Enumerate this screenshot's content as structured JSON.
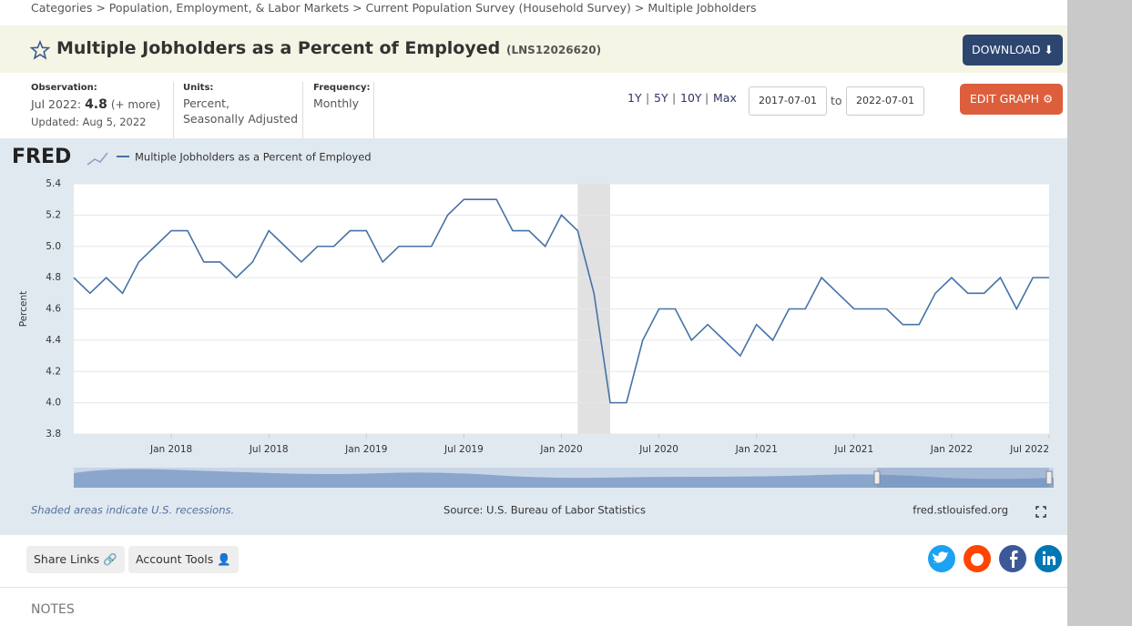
{
  "breadcrumb": "Categories > Population, Employment, & Labor Markets > Current Population Survey (Household Survey) > Multiple Jobholders",
  "header": {
    "title": "Multiple Jobholders as a Percent of Employed",
    "series_id": "(LNS12026620)",
    "download": "DOWNLOAD"
  },
  "meta": {
    "observation_label": "Observation:",
    "observation_date": "Jul 2022:",
    "observation_value": 4.8,
    "more": "(+ more)",
    "updated": "Updated: Aug 5, 2022",
    "units_label": "Units:",
    "units": [
      "Percent,",
      "Seasonally Adjusted"
    ],
    "frequency_label": "Frequency:",
    "frequency": "Monthly"
  },
  "controls": {
    "ranges": [
      "1Y",
      "5Y",
      "10Y",
      "Max"
    ],
    "range_separator": "|",
    "start_date": "2017-07-01",
    "to": "to",
    "end_date": "2022-07-01",
    "edit": "EDIT GRAPH"
  },
  "chart_data": {
    "type": "line",
    "logo": "FRED",
    "ylabel": "Percent",
    "x": [
      "2017-07",
      "2017-08",
      "2017-09",
      "2017-10",
      "2017-11",
      "2017-12",
      "2018-01",
      "2018-02",
      "2018-03",
      "2018-04",
      "2018-05",
      "2018-06",
      "2018-07",
      "2018-08",
      "2018-09",
      "2018-10",
      "2018-11",
      "2018-12",
      "2019-01",
      "2019-02",
      "2019-03",
      "2019-04",
      "2019-05",
      "2019-06",
      "2019-07",
      "2019-08",
      "2019-09",
      "2019-10",
      "2019-11",
      "2019-12",
      "2020-01",
      "2020-02",
      "2020-03",
      "2020-04",
      "2020-05",
      "2020-06",
      "2020-07",
      "2020-08",
      "2020-09",
      "2020-10",
      "2020-11",
      "2020-12",
      "2021-01",
      "2021-02",
      "2021-03",
      "2021-04",
      "2021-05",
      "2021-06",
      "2021-07",
      "2021-08",
      "2021-09",
      "2021-10",
      "2021-11",
      "2021-12",
      "2022-01",
      "2022-02",
      "2022-03",
      "2022-04",
      "2022-05",
      "2022-06",
      "2022-07"
    ],
    "series": [
      {
        "name": "Multiple Jobholders as a Percent of Employed",
        "color": "#4572a7",
        "values": [
          4.8,
          4.7,
          4.8,
          4.7,
          4.9,
          5.0,
          5.1,
          5.1,
          4.9,
          4.9,
          4.8,
          4.9,
          5.1,
          5.0,
          4.9,
          5.0,
          5.0,
          5.1,
          5.1,
          4.9,
          5.0,
          5.0,
          5.0,
          5.2,
          5.3,
          5.3,
          5.3,
          5.1,
          5.1,
          5.0,
          5.2,
          5.1,
          4.7,
          4.0,
          4.0,
          4.4,
          4.6,
          4.6,
          4.4,
          4.5,
          4.4,
          4.3,
          4.5,
          4.4,
          4.6,
          4.6,
          4.8,
          4.7,
          4.6,
          4.6,
          4.6,
          4.5,
          4.5,
          4.7,
          4.8,
          4.7,
          4.7,
          4.8,
          4.6,
          4.8,
          4.8
        ]
      }
    ],
    "recessions": [
      {
        "start": "2020-02",
        "end": "2020-04"
      }
    ],
    "xlim": [
      "2017-07",
      "2022-07"
    ],
    "xticks": [
      {
        "value": "2018-01",
        "label": "Jan 2018"
      },
      {
        "value": "2018-07",
        "label": "Jul 2018"
      },
      {
        "value": "2019-01",
        "label": "Jan 2019"
      },
      {
        "value": "2019-07",
        "label": "Jul 2019"
      },
      {
        "value": "2020-01",
        "label": "Jan 2020"
      },
      {
        "value": "2020-07",
        "label": "Jul 2020"
      },
      {
        "value": "2021-01",
        "label": "Jan 2021"
      },
      {
        "value": "2021-07",
        "label": "Jul 2021"
      },
      {
        "value": "2022-01",
        "label": "Jan 2022"
      },
      {
        "value": "2022-07",
        "label": "Jul 2022"
      }
    ],
    "ylim": [
      3.8,
      5.4
    ],
    "yticks": [
      3.8,
      {
        "value": 4,
        "label": "4.0"
      },
      4.2,
      4.4,
      4.6,
      4.8,
      {
        "value": 5,
        "label": "5.0"
      },
      5.2,
      5.4
    ],
    "grid": true,
    "note": "Shaded areas indicate U.S. recessions.",
    "source": "Source: U.S. Bureau of Labor Statistics",
    "site": "fred.stlouisfed.org"
  },
  "footer": {
    "share": "Share Links",
    "account": "Account Tools",
    "notes": "NOTES"
  }
}
